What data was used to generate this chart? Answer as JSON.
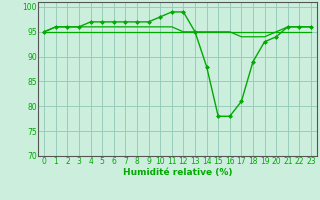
{
  "xlabel": "Humidité relative (%)",
  "bg_color": "#cceedd",
  "grid_color": "#99ccbb",
  "line_color": "#00aa00",
  "marker_color": "#00aa00",
  "ylim": [
    70,
    101
  ],
  "xlim": [
    -0.5,
    23.5
  ],
  "yticks": [
    70,
    75,
    80,
    85,
    90,
    95,
    100
  ],
  "xticks": [
    0,
    1,
    2,
    3,
    4,
    5,
    6,
    7,
    8,
    9,
    10,
    11,
    12,
    13,
    14,
    15,
    16,
    17,
    18,
    19,
    20,
    21,
    22,
    23
  ],
  "series_main": {
    "x": [
      0,
      1,
      2,
      3,
      4,
      5,
      6,
      7,
      8,
      9,
      10,
      11,
      12,
      13,
      14,
      15,
      16,
      17,
      18,
      19,
      20,
      21,
      22,
      23
    ],
    "y": [
      95,
      96,
      96,
      96,
      97,
      97,
      97,
      97,
      97,
      97,
      98,
      99,
      99,
      95,
      88,
      78,
      78,
      81,
      89,
      93,
      94,
      96,
      96,
      96
    ]
  },
  "series_mid": {
    "x": [
      0,
      1,
      2,
      3,
      4,
      5,
      6,
      7,
      8,
      9,
      10,
      11,
      12,
      13,
      14,
      15,
      16,
      17,
      18,
      19,
      20,
      21,
      22,
      23
    ],
    "y": [
      95,
      96,
      96,
      96,
      96,
      96,
      96,
      96,
      96,
      96,
      96,
      96,
      95,
      95,
      95,
      95,
      95,
      94,
      94,
      94,
      95,
      96,
      96,
      96
    ]
  },
  "series_flat": {
    "x": [
      0,
      23
    ],
    "y": [
      95,
      95
    ]
  }
}
